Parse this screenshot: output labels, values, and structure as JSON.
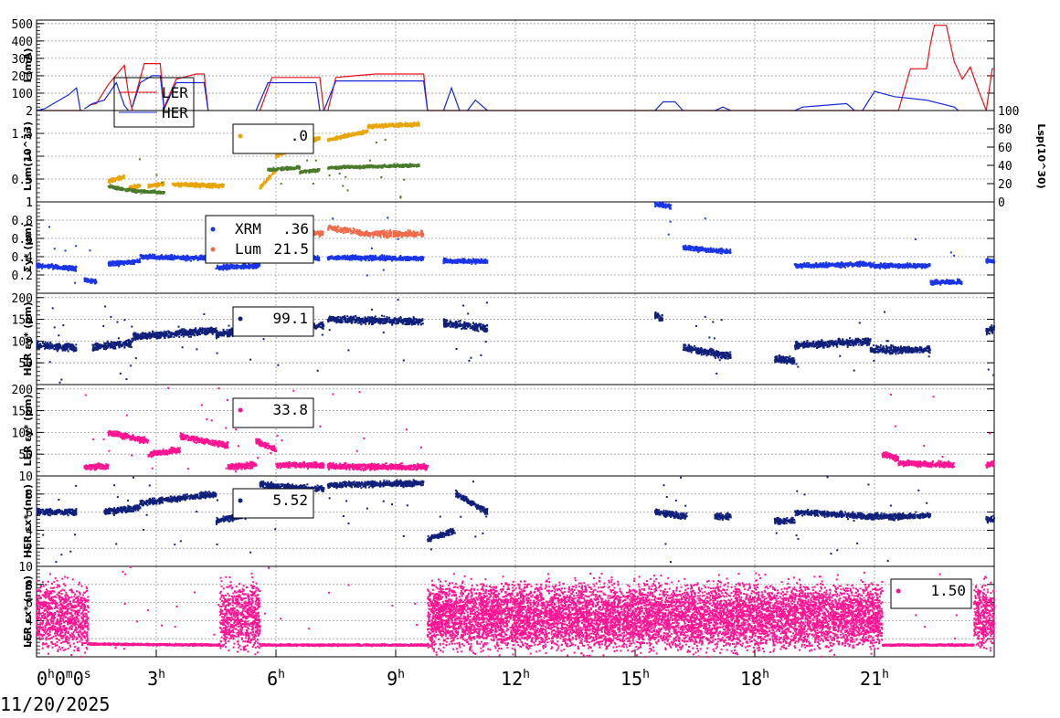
{
  "date_label": "11/20/2025",
  "x_ticks": [
    {
      "h": 0,
      "base": "0",
      "sup": "h",
      "extra": "0",
      "sup2": "m",
      "extra2": "0",
      "sup3": "s"
    },
    {
      "h": 3,
      "base": "3",
      "sup": "h"
    },
    {
      "h": 6,
      "base": "6",
      "sup": "h"
    },
    {
      "h": 9,
      "base": "9",
      "sup": "h"
    },
    {
      "h": 12,
      "base": "12",
      "sup": "h"
    },
    {
      "h": 15,
      "base": "15",
      "sup": "h"
    },
    {
      "h": 18,
      "base": "18",
      "sup": "h"
    },
    {
      "h": 21,
      "base": "21",
      "sup": "h"
    }
  ],
  "colors": {
    "ler": "#e8101a",
    "her": "#1628d8",
    "lum": "#e8a50a",
    "lum_sp": "#4a7a2a",
    "xrm": "#1a35e6",
    "lum_sigma": "#f06a4a",
    "her_eps": "#10207a",
    "ler_eps": "#ff1493"
  },
  "chart_data": [
    {
      "type": "line",
      "id": "current",
      "ylabel": "I (mA)",
      "ylim": [
        0,
        520
      ],
      "yticks": [
        100,
        200,
        300,
        400,
        500
      ],
      "series": [
        {
          "name": "LER",
          "color_key": "ler",
          "segments": [
            [
              [
                0.0,
                0
              ],
              [
                1.2,
                0
              ]
            ],
            [
              [
                1.3,
                30
              ],
              [
                1.5,
                40
              ],
              [
                1.8,
                150
              ],
              [
                2.2,
                260
              ],
              [
                2.3,
                100
              ],
              [
                2.4,
                0
              ]
            ],
            [
              [
                2.4,
                20
              ],
              [
                2.7,
                270
              ],
              [
                3.1,
                270
              ],
              [
                3.2,
                0
              ]
            ],
            [
              [
                3.2,
                20
              ],
              [
                3.5,
                180
              ],
              [
                4.0,
                210
              ],
              [
                4.2,
                210
              ],
              [
                4.3,
                0
              ]
            ],
            [
              [
                5.6,
                0
              ],
              [
                5.9,
                190
              ],
              [
                7.1,
                190
              ],
              [
                7.2,
                0
              ]
            ],
            [
              [
                7.3,
                0
              ],
              [
                7.5,
                190
              ],
              [
                8.0,
                200
              ],
              [
                8.5,
                210
              ],
              [
                9.7,
                210
              ],
              [
                9.8,
                0
              ]
            ],
            [
              [
                9.8,
                0
              ],
              [
                21.6,
                0
              ]
            ],
            [
              [
                21.6,
                0
              ],
              [
                21.9,
                240
              ],
              [
                22.3,
                240
              ],
              [
                22.4,
                380
              ],
              [
                22.5,
                490
              ],
              [
                22.8,
                490
              ],
              [
                23.0,
                280
              ],
              [
                23.2,
                180
              ],
              [
                23.4,
                250
              ],
              [
                23.6,
                120
              ],
              [
                23.8,
                0
              ]
            ],
            [
              [
                23.8,
                0
              ],
              [
                23.95,
                240
              ],
              [
                24.0,
                240
              ]
            ]
          ]
        },
        {
          "name": "HER",
          "color_key": "her",
          "segments": [
            [
              [
                0.0,
                0
              ],
              [
                0.2,
                10
              ],
              [
                0.8,
                90
              ],
              [
                1.0,
                130
              ],
              [
                1.1,
                0
              ]
            ],
            [
              [
                1.2,
                10
              ],
              [
                1.4,
                40
              ],
              [
                1.7,
                60
              ],
              [
                2.0,
                160
              ],
              [
                2.2,
                30
              ],
              [
                2.3,
                0
              ]
            ],
            [
              [
                2.4,
                20
              ],
              [
                2.6,
                160
              ],
              [
                2.9,
                200
              ],
              [
                3.1,
                200
              ],
              [
                3.2,
                0
              ]
            ],
            [
              [
                3.2,
                10
              ],
              [
                3.5,
                160
              ],
              [
                4.2,
                160
              ],
              [
                4.3,
                0
              ]
            ],
            [
              [
                5.5,
                0
              ],
              [
                5.8,
                160
              ],
              [
                7.0,
                160
              ],
              [
                7.1,
                0
              ]
            ],
            [
              [
                7.2,
                0
              ],
              [
                7.5,
                170
              ],
              [
                9.7,
                170
              ],
              [
                9.8,
                0
              ]
            ],
            [
              [
                10.2,
                0
              ],
              [
                10.4,
                130
              ],
              [
                10.6,
                0
              ]
            ],
            [
              [
                10.8,
                0
              ],
              [
                11.0,
                60
              ],
              [
                11.3,
                0
              ]
            ],
            [
              [
                15.5,
                0
              ],
              [
                15.7,
                50
              ],
              [
                16.0,
                50
              ],
              [
                16.2,
                0
              ]
            ],
            [
              [
                17.0,
                0
              ],
              [
                17.2,
                20
              ],
              [
                17.4,
                0
              ]
            ],
            [
              [
                19.0,
                0
              ],
              [
                19.2,
                20
              ],
              [
                20.3,
                40
              ],
              [
                20.5,
                0
              ]
            ],
            [
              [
                20.7,
                0
              ],
              [
                21.0,
                110
              ],
              [
                21.5,
                80
              ],
              [
                22.3,
                60
              ],
              [
                23.0,
                20
              ],
              [
                23.1,
                0
              ]
            ]
          ]
        }
      ],
      "legend_box": {
        "placement": "top-left",
        "entries": [
          "LER",
          "HER"
        ]
      }
    },
    {
      "type": "scatter",
      "id": "luminosity",
      "ylabel": "Lum(10^33)",
      "ylim": [
        0,
        2
      ],
      "yticks": [
        0.5,
        1,
        1.5
      ],
      "top_label": "2",
      "bottom_label": "1",
      "y2label": "Lsp(10^30)",
      "y2lim": [
        0,
        100
      ],
      "y2ticks": [
        0,
        20,
        40,
        60,
        80,
        100
      ],
      "legend_value": ".0"
    },
    {
      "type": "scatter",
      "id": "sigma",
      "ylabel": "Σy* (μm)",
      "ylim": [
        0,
        1.0
      ],
      "yticks": [
        0.2,
        0.4,
        0.6,
        0.8
      ],
      "top_label": "1",
      "legend": [
        {
          "name": "XRM",
          "value": ".36"
        },
        {
          "name": "Lum",
          "value": "21.5"
        }
      ]
    },
    {
      "type": "scatter",
      "id": "her_ey",
      "ylabel": "HER εy* (pm)",
      "ylim": [
        0,
        210
      ],
      "yticks": [
        50,
        100,
        150,
        200
      ],
      "legend_value": "99.1"
    },
    {
      "type": "scatter",
      "id": "ler_ey",
      "ylabel": "LER εy* (pm)",
      "ylim": [
        0,
        210
      ],
      "yticks": [
        50,
        100,
        150,
        200
      ],
      "legend_value": "33.8"
    },
    {
      "type": "scatter",
      "id": "her_ex",
      "ylabel": "HER εx* (nm)",
      "ylim": [
        0,
        10
      ],
      "yticks": [
        2,
        4,
        6,
        8
      ],
      "top_label": "10",
      "legend_value": "5.52"
    },
    {
      "type": "scatter",
      "id": "ler_ex",
      "ylabel": "LER εx* (nm)",
      "ylim": [
        0,
        10
      ],
      "yticks": [
        2,
        4,
        6,
        8
      ],
      "top_label": "10",
      "legend_value": "1.50"
    }
  ]
}
